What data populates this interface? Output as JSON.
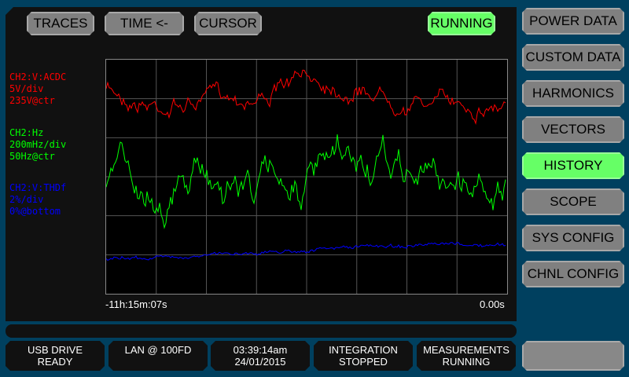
{
  "toolbar": {
    "traces": "TRACES",
    "time": "TIME <-",
    "cursor": "CURSOR",
    "running": "RUNNING"
  },
  "sidebar": {
    "items": [
      {
        "label": "POWER DATA",
        "active": false
      },
      {
        "label": "CUSTOM DATA",
        "active": false
      },
      {
        "label": "HARMONICS",
        "active": false
      },
      {
        "label": "VECTORS",
        "active": false
      },
      {
        "label": "HISTORY",
        "active": true
      },
      {
        "label": "SCOPE",
        "active": false
      },
      {
        "label": "SYS CONFIG",
        "active": false
      },
      {
        "label": "CHNL CONFIG",
        "active": false
      }
    ]
  },
  "traces": [
    {
      "name": "CH2:V:ACDC",
      "scale": "5V/div",
      "ref": "235V@ctr",
      "color": "#ff0000"
    },
    {
      "name": "CH2:Hz",
      "scale": "200mHz/div",
      "ref": "50Hz@ctr",
      "color": "#00ff00"
    },
    {
      "name": "CH2:V:THDf",
      "scale": "2%/div",
      "ref": "0%@bottom",
      "color": "#0000ff"
    }
  ],
  "time_axis": {
    "start": "-11h:15m:07s",
    "end": "0.00s"
  },
  "status": [
    {
      "l1": "USB DRIVE",
      "l2": "READY"
    },
    {
      "l1": "LAN @ 100FD",
      "l2": ""
    },
    {
      "l1": "03:39:14am",
      "l2": "24/01/2015"
    },
    {
      "l1": "INTEGRATION",
      "l2": "STOPPED"
    },
    {
      "l1": "MEASUREMENTS",
      "l2": "RUNNING"
    }
  ]
}
